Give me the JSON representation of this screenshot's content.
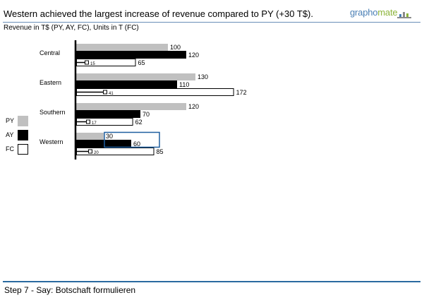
{
  "header": {
    "headline": "Western achieved the largest increase of revenue compared to PY (+30 T$).",
    "logo_left": "grapho",
    "logo_right": "mate",
    "subtitle": "Revenue in T$ (PY, AY, FC), Units in T (FC)"
  },
  "footer": {
    "text": "Step 7 - Say: Botschaft formulieren"
  },
  "colors": {
    "py": "#c0c0c0",
    "ay": "#000000",
    "fc": "#ffffff",
    "highlight": "#1f5f9f",
    "logo_blue": "#4a7fb5",
    "logo_green": "#8cb43a"
  },
  "chart_data": {
    "type": "bar",
    "orientation": "horizontal",
    "categories": [
      "Central",
      "Eastern",
      "Southern",
      "Western"
    ],
    "series": [
      {
        "name": "PY",
        "values": [
          100,
          130,
          120,
          30
        ]
      },
      {
        "name": "AY",
        "values": [
          120,
          110,
          70,
          60
        ]
      },
      {
        "name": "FC",
        "values": [
          65,
          172,
          62,
          85
        ]
      }
    ],
    "units": [
      15,
      41,
      17,
      20
    ],
    "legend": [
      "PY",
      "AY",
      "FC"
    ],
    "legend_position": "left",
    "highlight": "Western",
    "grid": false
  }
}
